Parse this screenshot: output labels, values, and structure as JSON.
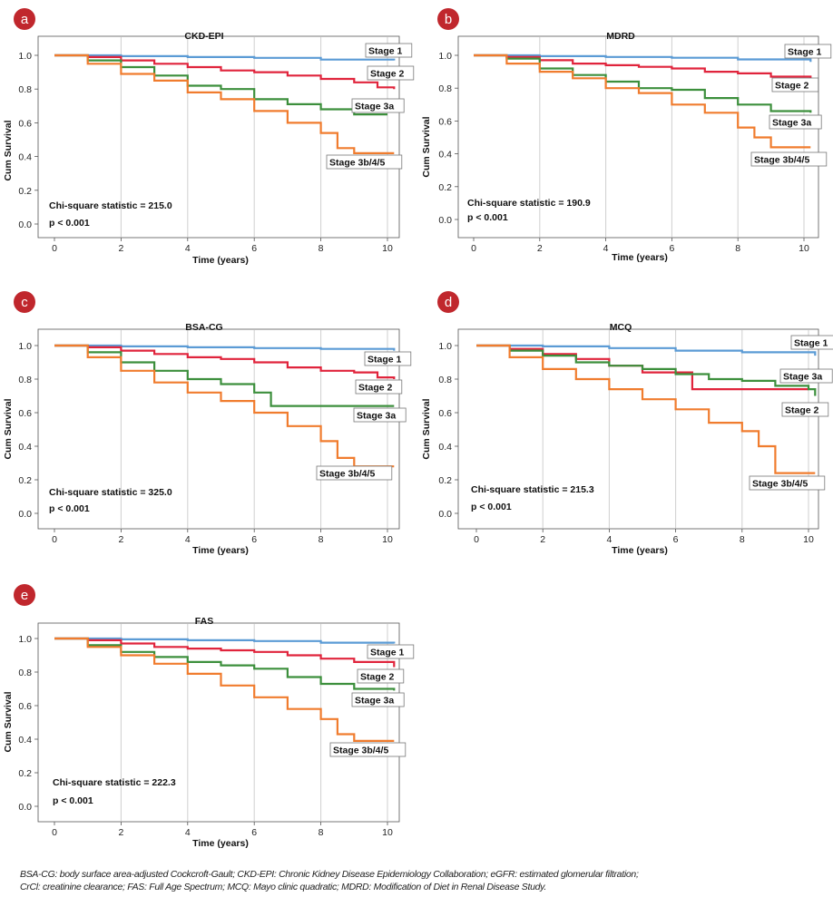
{
  "panels": [
    {
      "badge": "a",
      "title": "CKD-EPI",
      "stat": "Chi-square statistic = 215.0",
      "p": "p < 0.001",
      "xlabel": "Time (years)",
      "ylabel": "Cum Survival",
      "stage_labels": [
        "Stage 1",
        "Stage 2",
        "Stage 3a",
        "Stage 3b/4/5"
      ]
    },
    {
      "badge": "b",
      "title": "MDRD",
      "stat": "Chi-square statistic = 190.9",
      "p": "p < 0.001",
      "xlabel": "Time (years)",
      "ylabel": "Cum Survival",
      "stage_labels": [
        "Stage 1",
        "Stage 2",
        "Stage 3a",
        "Stage 3b/4/5"
      ]
    },
    {
      "badge": "c",
      "title": "BSA-CG",
      "stat": "Chi-square statistic = 325.0",
      "p": "p < 0.001",
      "xlabel": "Time (years)",
      "ylabel": "Cum Survival",
      "stage_labels": [
        "Stage 1",
        "Stage 2",
        "Stage 3a",
        "Stage 3b/4/5"
      ]
    },
    {
      "badge": "d",
      "title": "MCQ",
      "stat": "Chi-square statistic = 215.3",
      "p": "p < 0.001",
      "xlabel": "Time (years)",
      "ylabel": "Cum Survival",
      "stage_labels": [
        "Stage 1",
        "Stage 3a",
        "Stage 2",
        "Stage 3b/4/5"
      ]
    },
    {
      "badge": "e",
      "title": "FAS",
      "stat": "Chi-square statistic = 222.3",
      "p": "p < 0.001",
      "xlabel": "Time (years)",
      "ylabel": "Cum Survival",
      "stage_labels": [
        "Stage 1",
        "Stage 2",
        "Stage 3a",
        "Stage 3b/4/5"
      ]
    }
  ],
  "caption": {
    "line1": "BSA-CG: body surface area-adjusted Cockcroft-Gault; CKD-EPI: Chronic Kidney Disease Epidemiology Collaboration; eGFR: estimated glomerular filtration;",
    "line2": "CrCl: creatinine clearance; FAS: Full Age Spectrum; MCQ: Mayo clinic quadratic; MDRD: Modification of Diet in Renal Disease Study."
  },
  "colors": {
    "badge": "#c0272d",
    "Stage 1": "#5b9bd5",
    "Stage 2": "#e0243c",
    "Stage 3a": "#3c8f3c",
    "Stage 3b/4/5": "#f07c2e",
    "grid": "#cfcfcf"
  },
  "chart_data": [
    {
      "type": "line",
      "title": "CKD-EPI",
      "xlabel": "Time (years)",
      "ylabel": "Cum Survival",
      "xlim": [
        0,
        10
      ],
      "ylim": [
        0,
        1.0
      ],
      "x_ticks": [
        0,
        2,
        4,
        6,
        8,
        10
      ],
      "y_ticks": [
        0.0,
        0.2,
        0.4,
        0.6,
        0.8,
        1.0
      ],
      "x_tick_labels": [
        "0",
        "2",
        "4",
        "6",
        "8",
        "10"
      ],
      "y_tick_labels": [
        "0.0",
        "0.2",
        "0.4",
        "0.6",
        "0.8",
        "1.0"
      ],
      "grid": "vertical",
      "series": [
        {
          "name": "Stage 1",
          "x": [
            0,
            2,
            4,
            6,
            8,
            10.2
          ],
          "y": [
            1.0,
            0.995,
            0.99,
            0.985,
            0.975,
            0.97
          ]
        },
        {
          "name": "Stage 2",
          "x": [
            0,
            1,
            2,
            3,
            4,
            5,
            6,
            7,
            8,
            9,
            9.7,
            10.2
          ],
          "y": [
            1.0,
            0.99,
            0.97,
            0.95,
            0.93,
            0.91,
            0.9,
            0.88,
            0.86,
            0.84,
            0.81,
            0.8
          ]
        },
        {
          "name": "Stage 3a",
          "x": [
            0,
            1,
            2,
            3,
            4,
            5,
            6,
            7,
            8,
            9,
            10
          ],
          "y": [
            1.0,
            0.97,
            0.93,
            0.88,
            0.82,
            0.8,
            0.74,
            0.71,
            0.68,
            0.65,
            0.65
          ]
        },
        {
          "name": "Stage 3b/4/5",
          "x": [
            0,
            1,
            2,
            3,
            4,
            5,
            6,
            7,
            8,
            8.5,
            9,
            10.2
          ],
          "y": [
            1.0,
            0.95,
            0.89,
            0.85,
            0.78,
            0.74,
            0.67,
            0.6,
            0.54,
            0.45,
            0.42,
            0.42
          ]
        }
      ],
      "annotations": [
        "Chi-square statistic = 215.0",
        "p < 0.001"
      ]
    },
    {
      "type": "line",
      "title": "MDRD",
      "xlabel": "Time (years)",
      "ylabel": "Cum Survival",
      "xlim": [
        0,
        10
      ],
      "ylim": [
        0,
        1.0
      ],
      "x_ticks": [
        0,
        2,
        4,
        6,
        8,
        10
      ],
      "y_ticks": [
        0.0,
        0.2,
        0.4,
        0.6,
        0.8,
        1.0
      ],
      "x_tick_labels": [
        "0",
        "2",
        "4",
        "6",
        "8",
        "10"
      ],
      "y_tick_labels": [
        "0.0",
        "0.2",
        "0.4",
        "0.6",
        "0.8",
        "1.0"
      ],
      "grid": "vertical",
      "series": [
        {
          "name": "Stage 1",
          "x": [
            0,
            2,
            4,
            6,
            8,
            10.2
          ],
          "y": [
            1.0,
            0.995,
            0.99,
            0.985,
            0.975,
            0.96
          ]
        },
        {
          "name": "Stage 2",
          "x": [
            0,
            1,
            2,
            3,
            4,
            5,
            6,
            7,
            8,
            9,
            10.2
          ],
          "y": [
            1.0,
            0.99,
            0.97,
            0.95,
            0.94,
            0.93,
            0.92,
            0.9,
            0.89,
            0.87,
            0.86
          ]
        },
        {
          "name": "Stage 3a",
          "x": [
            0,
            1,
            2,
            3,
            4,
            5,
            6,
            7,
            8,
            9,
            10.2
          ],
          "y": [
            1.0,
            0.98,
            0.92,
            0.88,
            0.84,
            0.8,
            0.79,
            0.74,
            0.7,
            0.66,
            0.65
          ]
        },
        {
          "name": "Stage 3b/4/5",
          "x": [
            0,
            1,
            2,
            3,
            4,
            5,
            6,
            7,
            8,
            8.5,
            9,
            10.2
          ],
          "y": [
            1.0,
            0.95,
            0.9,
            0.86,
            0.8,
            0.77,
            0.7,
            0.65,
            0.56,
            0.5,
            0.44,
            0.44
          ]
        }
      ],
      "annotations": [
        "Chi-square statistic = 190.9",
        "p < 0.001"
      ]
    },
    {
      "type": "line",
      "title": "BSA-CG",
      "xlabel": "Time (years)",
      "ylabel": "Cum Survival",
      "xlim": [
        0,
        10
      ],
      "ylim": [
        0,
        1.0
      ],
      "x_ticks": [
        0,
        2,
        4,
        6,
        8,
        10
      ],
      "y_ticks": [
        0.0,
        0.2,
        0.4,
        0.6,
        0.8,
        1.0
      ],
      "x_tick_labels": [
        "0",
        "2",
        "4",
        "6",
        "8",
        "10"
      ],
      "y_tick_labels": [
        "0.0",
        "0.2",
        "0.4",
        "0.6",
        "0.8",
        "1.0"
      ],
      "grid": "vertical",
      "series": [
        {
          "name": "Stage 1",
          "x": [
            0,
            2,
            4,
            6,
            8,
            10.2
          ],
          "y": [
            1.0,
            0.995,
            0.99,
            0.985,
            0.98,
            0.97
          ]
        },
        {
          "name": "Stage 2",
          "x": [
            0,
            1,
            2,
            3,
            4,
            5,
            6,
            7,
            8,
            9,
            9.7,
            10.2
          ],
          "y": [
            1.0,
            0.99,
            0.97,
            0.95,
            0.93,
            0.92,
            0.9,
            0.87,
            0.85,
            0.84,
            0.81,
            0.8
          ]
        },
        {
          "name": "Stage 3a",
          "x": [
            0,
            1,
            2,
            3,
            4,
            5,
            6,
            6.5,
            7,
            8,
            9,
            10.2
          ],
          "y": [
            1.0,
            0.96,
            0.9,
            0.85,
            0.8,
            0.77,
            0.72,
            0.64,
            0.64,
            0.64,
            0.64,
            0.64
          ]
        },
        {
          "name": "Stage 3b/4/5",
          "x": [
            0,
            1,
            2,
            3,
            4,
            5,
            6,
            7,
            8,
            8.5,
            9,
            10.2
          ],
          "y": [
            1.0,
            0.93,
            0.85,
            0.78,
            0.72,
            0.67,
            0.6,
            0.52,
            0.43,
            0.33,
            0.28,
            0.28
          ]
        }
      ],
      "annotations": [
        "Chi-square statistic = 325.0",
        "p < 0.001"
      ]
    },
    {
      "type": "line",
      "title": "MCQ",
      "xlabel": "Time (years)",
      "ylabel": "Cum Survival",
      "xlim": [
        0,
        10
      ],
      "ylim": [
        0,
        1.0
      ],
      "x_ticks": [
        0,
        2,
        4,
        6,
        8,
        10
      ],
      "y_ticks": [
        0.0,
        0.2,
        0.4,
        0.6,
        0.8,
        1.0
      ],
      "x_tick_labels": [
        "0",
        "2",
        "4",
        "6",
        "8",
        "10"
      ],
      "y_tick_labels": [
        "0.0",
        "0.2",
        "0.4",
        "0.6",
        "0.8",
        "1.0"
      ],
      "grid": "vertical",
      "series": [
        {
          "name": "Stage 1",
          "x": [
            0,
            2,
            4,
            6,
            8,
            10.2
          ],
          "y": [
            1.0,
            0.995,
            0.985,
            0.97,
            0.96,
            0.94
          ]
        },
        {
          "name": "Stage 2",
          "x": [
            0,
            1,
            2,
            3,
            4,
            5,
            6,
            6.5,
            7,
            8,
            9,
            10
          ],
          "y": [
            1.0,
            0.98,
            0.95,
            0.92,
            0.88,
            0.84,
            0.84,
            0.74,
            0.74,
            0.74,
            0.74,
            0.74
          ]
        },
        {
          "name": "Stage 3a",
          "x": [
            0,
            1,
            2,
            3,
            4,
            5,
            6,
            7,
            8,
            9,
            10,
            10.2
          ],
          "y": [
            1.0,
            0.97,
            0.94,
            0.9,
            0.88,
            0.86,
            0.83,
            0.8,
            0.79,
            0.76,
            0.74,
            0.7
          ]
        },
        {
          "name": "Stage 3b/4/5",
          "x": [
            0,
            1,
            2,
            3,
            4,
            5,
            6,
            7,
            8,
            8.5,
            9,
            10.2
          ],
          "y": [
            1.0,
            0.93,
            0.86,
            0.8,
            0.74,
            0.68,
            0.62,
            0.54,
            0.49,
            0.4,
            0.24,
            0.24
          ]
        }
      ],
      "annotations": [
        "Chi-square statistic = 215.3",
        "p < 0.001"
      ]
    },
    {
      "type": "line",
      "title": "FAS",
      "xlabel": "Time (years)",
      "ylabel": "Cum Survival",
      "xlim": [
        0,
        10
      ],
      "ylim": [
        0,
        1.0
      ],
      "x_ticks": [
        0,
        2,
        4,
        6,
        8,
        10
      ],
      "y_ticks": [
        0.0,
        0.2,
        0.4,
        0.6,
        0.8,
        1.0
      ],
      "x_tick_labels": [
        "0",
        "2",
        "4",
        "6",
        "8",
        "10"
      ],
      "y_tick_labels": [
        "0.0",
        "0.2",
        "0.4",
        "0.6",
        "0.8",
        "1.0"
      ],
      "grid": "vertical",
      "series": [
        {
          "name": "Stage 1",
          "x": [
            0,
            2,
            4,
            6,
            8,
            10.2
          ],
          "y": [
            1.0,
            0.995,
            0.99,
            0.985,
            0.975,
            0.97
          ]
        },
        {
          "name": "Stage 2",
          "x": [
            0,
            1,
            2,
            3,
            4,
            5,
            6,
            7,
            8,
            9,
            10.2
          ],
          "y": [
            1.0,
            0.99,
            0.97,
            0.95,
            0.94,
            0.93,
            0.92,
            0.9,
            0.88,
            0.86,
            0.83
          ]
        },
        {
          "name": "Stage 3a",
          "x": [
            0,
            1,
            2,
            3,
            4,
            5,
            6,
            7,
            8,
            9,
            10.2
          ],
          "y": [
            1.0,
            0.96,
            0.92,
            0.89,
            0.86,
            0.84,
            0.82,
            0.77,
            0.73,
            0.7,
            0.69
          ]
        },
        {
          "name": "Stage 3b/4/5",
          "x": [
            0,
            1,
            2,
            3,
            4,
            5,
            6,
            7,
            8,
            8.5,
            9,
            10.2
          ],
          "y": [
            1.0,
            0.95,
            0.9,
            0.85,
            0.79,
            0.72,
            0.65,
            0.58,
            0.52,
            0.43,
            0.39,
            0.39
          ]
        }
      ],
      "annotations": [
        "Chi-square statistic = 222.3",
        "p < 0.001"
      ]
    }
  ]
}
